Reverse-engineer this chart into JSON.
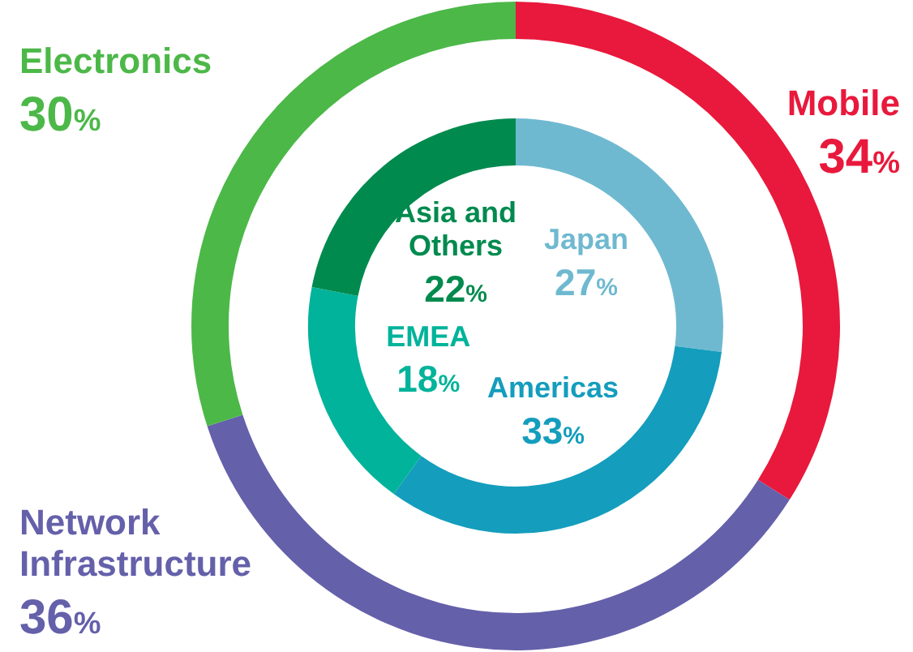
{
  "chart_data": [
    {
      "type": "donut",
      "categories": [
        "Mobile",
        "Network Infrastructure",
        "Electronics"
      ],
      "values": [
        34,
        36,
        30
      ],
      "colors": [
        "#e8193c",
        "#6460aa",
        "#4cb848"
      ],
      "value_labels": [
        "34%",
        "36%",
        "30%"
      ]
    },
    {
      "type": "donut",
      "categories": [
        "Japan",
        "Americas",
        "EMEA",
        "Asia and Others"
      ],
      "values": [
        27,
        33,
        18,
        22
      ],
      "colors": [
        "#6fb9d0",
        "#149dbd",
        "#00b39a",
        "#008a4e"
      ],
      "value_labels": [
        "27%",
        "33%",
        "18%",
        "22%"
      ]
    }
  ]
}
